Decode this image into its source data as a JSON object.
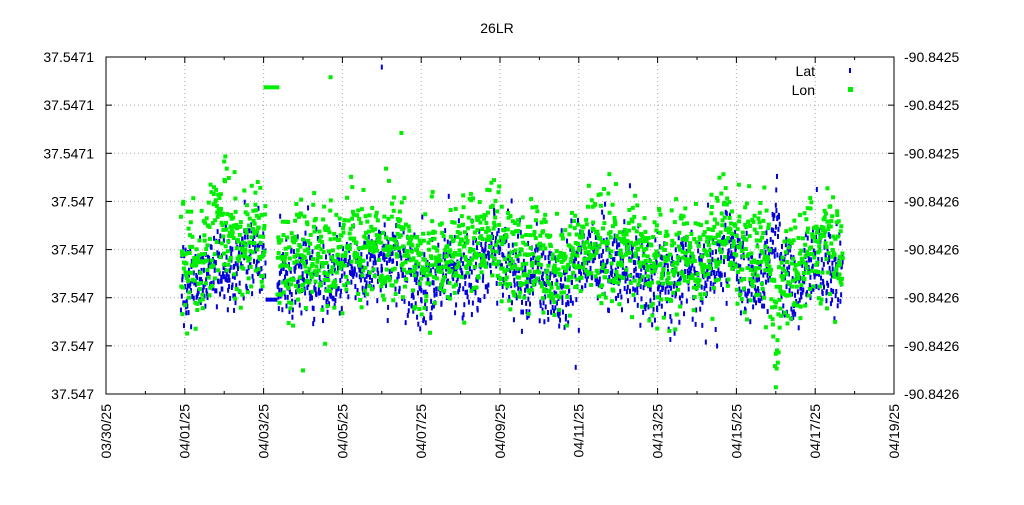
{
  "chart_data": {
    "type": "scatter",
    "title": "26LR",
    "xlabel": "",
    "ylabel": "",
    "y2label": "",
    "grid": true,
    "legend_placement": "top-right",
    "x_tick_labels": [
      "03/30/25",
      "04/01/25",
      "04/03/25",
      "04/05/25",
      "04/07/25",
      "04/09/25",
      "04/11/25",
      "04/13/25",
      "04/15/25",
      "04/17/25",
      "04/19/25"
    ],
    "y_left_tick_labels": [
      "37.5471",
      "37.5471",
      "37.5471",
      "37.547",
      "37.547",
      "37.547",
      "37.547",
      "37.547"
    ],
    "y_right_tick_labels": [
      "-90.8425",
      "-90.8425",
      "-90.8425",
      "-90.8426",
      "-90.8426",
      "-90.8426",
      "-90.8426",
      "-90.8426"
    ],
    "x_range_days": [
      0,
      20
    ],
    "series": [
      {
        "name": "Lat",
        "color": "#0000dd",
        "marker": "dot",
        "axis": "left",
        "coverage_days": [
          1.9,
          18.7
        ],
        "typical_level": 0.36,
        "spread": 0.06,
        "gap_days": [
          4.05,
          4.35
        ],
        "flat_segment": {
          "x_days": [
            4.05,
            4.35
          ],
          "level": 0.28
        },
        "peaks": [
          {
            "x_days": 17.0,
            "level": 0.56
          },
          {
            "x_days": 7.0,
            "level": 0.97
          }
        ]
      },
      {
        "name": "Lon",
        "color": "#00ee00",
        "marker": "square",
        "axis": "right",
        "coverage_days": [
          1.9,
          18.7
        ],
        "typical_level": 0.42,
        "spread": 0.08,
        "gap_days": [
          4.05,
          4.35
        ],
        "flat_segment": {
          "x_days": [
            4.0,
            4.4
          ],
          "level": 0.91
        },
        "peaks": [
          {
            "x_days": 3.0,
            "level": 0.69
          },
          {
            "x_days": 5.7,
            "level": 0.94
          }
        ],
        "dips": [
          {
            "x_days": 17.0,
            "level": 0.02
          },
          {
            "x_days": 5.0,
            "level": 0.07
          }
        ]
      }
    ]
  }
}
